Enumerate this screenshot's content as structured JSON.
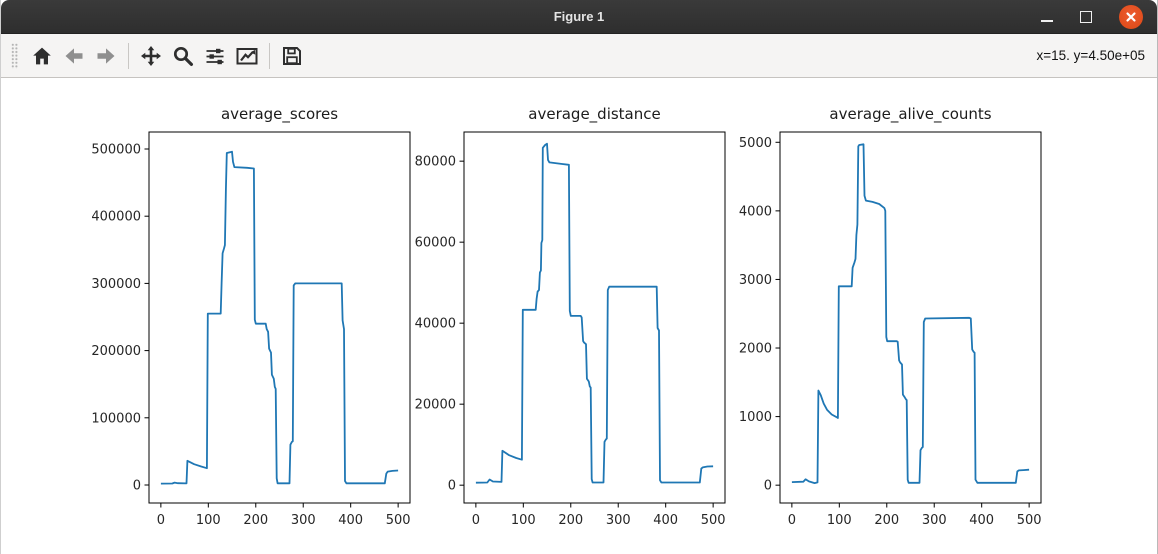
{
  "window": {
    "title": "Figure 1"
  },
  "window_controls": {
    "minimize_icon": "minimize",
    "maximize_icon": "maximize",
    "close_icon": "close",
    "close_color": "#dd4814"
  },
  "toolbar": {
    "tools": [
      {
        "id": "home",
        "icon": "home-icon"
      },
      {
        "id": "back",
        "icon": "back-arrow-icon"
      },
      {
        "id": "forward",
        "icon": "forward-arrow-icon"
      },
      {
        "id": "pan",
        "icon": "pan-move-icon"
      },
      {
        "id": "zoom",
        "icon": "zoom-magnifier-icon"
      },
      {
        "id": "configure-subplots",
        "icon": "sliders-icon"
      },
      {
        "id": "edit-axes",
        "icon": "line-chart-icon"
      },
      {
        "id": "save",
        "icon": "floppy-save-icon"
      }
    ],
    "status": "x=15. y=4.50e+05"
  },
  "colors": {
    "line": "#1f77b4",
    "spine": "#000000",
    "tick_text": "#262626"
  },
  "chart_data": [
    {
      "type": "line",
      "title": "average_scores",
      "xlabel": "",
      "ylabel": "",
      "grid": false,
      "legend": null,
      "xlim": [
        -25,
        525
      ],
      "ylim": [
        -26800,
        525300
      ],
      "xticks": [
        0,
        100,
        200,
        300,
        400,
        500
      ],
      "yticks": [
        0,
        100000,
        200000,
        300000,
        400000,
        500000
      ],
      "series": [
        {
          "name": "average_scores",
          "color": "#1f77b4",
          "points": [
            [
              0,
              2000
            ],
            [
              24,
              2200
            ],
            [
              29,
              3600
            ],
            [
              36,
              2600
            ],
            [
              54,
              2300
            ],
            [
              56,
              36000
            ],
            [
              70,
              31000
            ],
            [
              85,
              27500
            ],
            [
              97,
              25000
            ],
            [
              99,
              255000
            ],
            [
              126,
              255000
            ],
            [
              128,
              300000
            ],
            [
              130,
              345000
            ],
            [
              133,
              352000
            ],
            [
              135,
              357000
            ],
            [
              137,
              440000
            ],
            [
              139,
              494000
            ],
            [
              150,
              496000
            ],
            [
              152,
              481000
            ],
            [
              155,
              473000
            ],
            [
              182,
              472000
            ],
            [
              196,
              471000
            ],
            [
              198,
              246000
            ],
            [
              200,
              240000
            ],
            [
              221,
              240000
            ],
            [
              223,
              232000
            ],
            [
              226,
              228000
            ],
            [
              228,
              203000
            ],
            [
              232,
              197000
            ],
            [
              234,
              164000
            ],
            [
              238,
              158000
            ],
            [
              240,
              146000
            ],
            [
              242,
              143000
            ],
            [
              244,
              10000
            ],
            [
              246,
              2500
            ],
            [
              271,
              2500
            ],
            [
              273,
              60000
            ],
            [
              276,
              64000
            ],
            [
              278,
              65000
            ],
            [
              280,
              297000
            ],
            [
              283,
              300000
            ],
            [
              381,
              300000
            ],
            [
              383,
              245000
            ],
            [
              386,
              232000
            ],
            [
              388,
              6000
            ],
            [
              391,
              2500
            ],
            [
              472,
              2500
            ],
            [
              475,
              17000
            ],
            [
              478,
              20000
            ],
            [
              488,
              21000
            ],
            [
              500,
              21500
            ]
          ]
        }
      ]
    },
    {
      "type": "line",
      "title": "average_distance",
      "xlabel": "",
      "ylabel": "",
      "grid": false,
      "legend": null,
      "xlim": [
        -25,
        525
      ],
      "ylim": [
        -4400,
        87200
      ],
      "xticks": [
        0,
        100,
        200,
        300,
        400,
        500
      ],
      "yticks": [
        0,
        20000,
        40000,
        60000,
        80000
      ],
      "series": [
        {
          "name": "average_distance",
          "color": "#1f77b4",
          "points": [
            [
              0,
              600
            ],
            [
              24,
              650
            ],
            [
              29,
              1400
            ],
            [
              36,
              900
            ],
            [
              54,
              800
            ],
            [
              56,
              8500
            ],
            [
              70,
              7400
            ],
            [
              85,
              6700
            ],
            [
              97,
              6300
            ],
            [
              99,
              43300
            ],
            [
              126,
              43300
            ],
            [
              128,
              46000
            ],
            [
              130,
              47800
            ],
            [
              133,
              48200
            ],
            [
              135,
              52500
            ],
            [
              137,
              53000
            ],
            [
              138,
              59800
            ],
            [
              140,
              60500
            ],
            [
              141,
              83300
            ],
            [
              146,
              84000
            ],
            [
              150,
              84300
            ],
            [
              152,
              80300
            ],
            [
              155,
              79700
            ],
            [
              182,
              79300
            ],
            [
              196,
              79100
            ],
            [
              198,
              43000
            ],
            [
              200,
              41800
            ],
            [
              221,
              41800
            ],
            [
              223,
              41400
            ],
            [
              226,
              35600
            ],
            [
              228,
              35200
            ],
            [
              232,
              34800
            ],
            [
              234,
              26300
            ],
            [
              238,
              25600
            ],
            [
              240,
              24400
            ],
            [
              242,
              24100
            ],
            [
              244,
              1500
            ],
            [
              246,
              650
            ],
            [
              269,
              650
            ],
            [
              271,
              10700
            ],
            [
              274,
              11300
            ],
            [
              276,
              11500
            ],
            [
              278,
              48200
            ],
            [
              281,
              49000
            ],
            [
              381,
              49000
            ],
            [
              383,
              38800
            ],
            [
              386,
              38200
            ],
            [
              388,
              1200
            ],
            [
              391,
              650
            ],
            [
              472,
              650
            ],
            [
              475,
              4100
            ],
            [
              478,
              4400
            ],
            [
              488,
              4600
            ],
            [
              500,
              4650
            ]
          ]
        }
      ]
    },
    {
      "type": "line",
      "title": "average_alive_counts",
      "xlabel": "",
      "ylabel": "",
      "grid": false,
      "legend": null,
      "xlim": [
        -25,
        525
      ],
      "ylim": [
        -260,
        5150
      ],
      "xticks": [
        0,
        100,
        200,
        300,
        400,
        500
      ],
      "yticks": [
        0,
        1000,
        2000,
        3000,
        4000,
        5000
      ],
      "series": [
        {
          "name": "average_alive_counts",
          "color": "#1f77b4",
          "points": [
            [
              0,
              45
            ],
            [
              24,
              50
            ],
            [
              29,
              85
            ],
            [
              36,
              55
            ],
            [
              48,
              30
            ],
            [
              54,
              40
            ],
            [
              56,
              1380
            ],
            [
              61,
              1310
            ],
            [
              67,
              1190
            ],
            [
              74,
              1100
            ],
            [
              84,
              1030
            ],
            [
              95,
              990
            ],
            [
              97,
              980
            ],
            [
              99,
              2900
            ],
            [
              126,
              2900
            ],
            [
              128,
              3170
            ],
            [
              132,
              3250
            ],
            [
              134,
              3300
            ],
            [
              136,
              3650
            ],
            [
              138,
              3800
            ],
            [
              140,
              4940
            ],
            [
              142,
              4960
            ],
            [
              151,
              4970
            ],
            [
              153,
              4220
            ],
            [
              156,
              4150
            ],
            [
              170,
              4130
            ],
            [
              184,
              4100
            ],
            [
              195,
              4040
            ],
            [
              197,
              4000
            ],
            [
              199,
              2160
            ],
            [
              201,
              2100
            ],
            [
              221,
              2100
            ],
            [
              223,
              2090
            ],
            [
              226,
              1820
            ],
            [
              228,
              1790
            ],
            [
              232,
              1760
            ],
            [
              234,
              1320
            ],
            [
              238,
              1280
            ],
            [
              240,
              1255
            ],
            [
              242,
              1240
            ],
            [
              244,
              80
            ],
            [
              246,
              35
            ],
            [
              269,
              35
            ],
            [
              271,
              510
            ],
            [
              274,
              545
            ],
            [
              276,
              555
            ],
            [
              278,
              2380
            ],
            [
              281,
              2430
            ],
            [
              374,
              2440
            ],
            [
              377,
              2430
            ],
            [
              380,
              1980
            ],
            [
              383,
              1945
            ],
            [
              385,
              1930
            ],
            [
              387,
              80
            ],
            [
              391,
              35
            ],
            [
              472,
              35
            ],
            [
              475,
              200
            ],
            [
              478,
              215
            ],
            [
              488,
              220
            ],
            [
              500,
              225
            ]
          ]
        }
      ]
    }
  ]
}
